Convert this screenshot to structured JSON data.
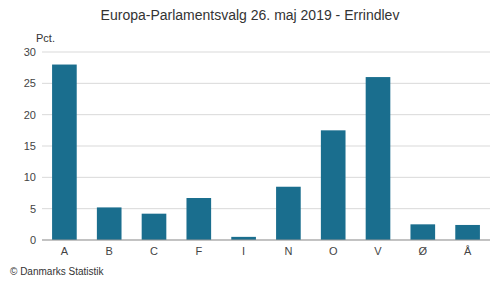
{
  "chart_data": {
    "type": "bar",
    "title": "Europa-Parlamentsvalg 26. maj 2019 - Errindlev",
    "categories": [
      "A",
      "B",
      "C",
      "F",
      "I",
      "N",
      "O",
      "V",
      "Ø",
      "Å"
    ],
    "values": [
      28.0,
      5.2,
      4.2,
      6.7,
      0.5,
      8.5,
      17.5,
      26.0,
      2.5,
      2.4
    ],
    "color": "#1a6e8e",
    "ylabel": "Pct.",
    "annotations": [
      "© Danmarks Statistik"
    ],
    "ylim": [
      0,
      30
    ],
    "yticks": [
      0,
      5,
      10,
      15,
      20,
      25,
      30
    ],
    "grid": true
  }
}
